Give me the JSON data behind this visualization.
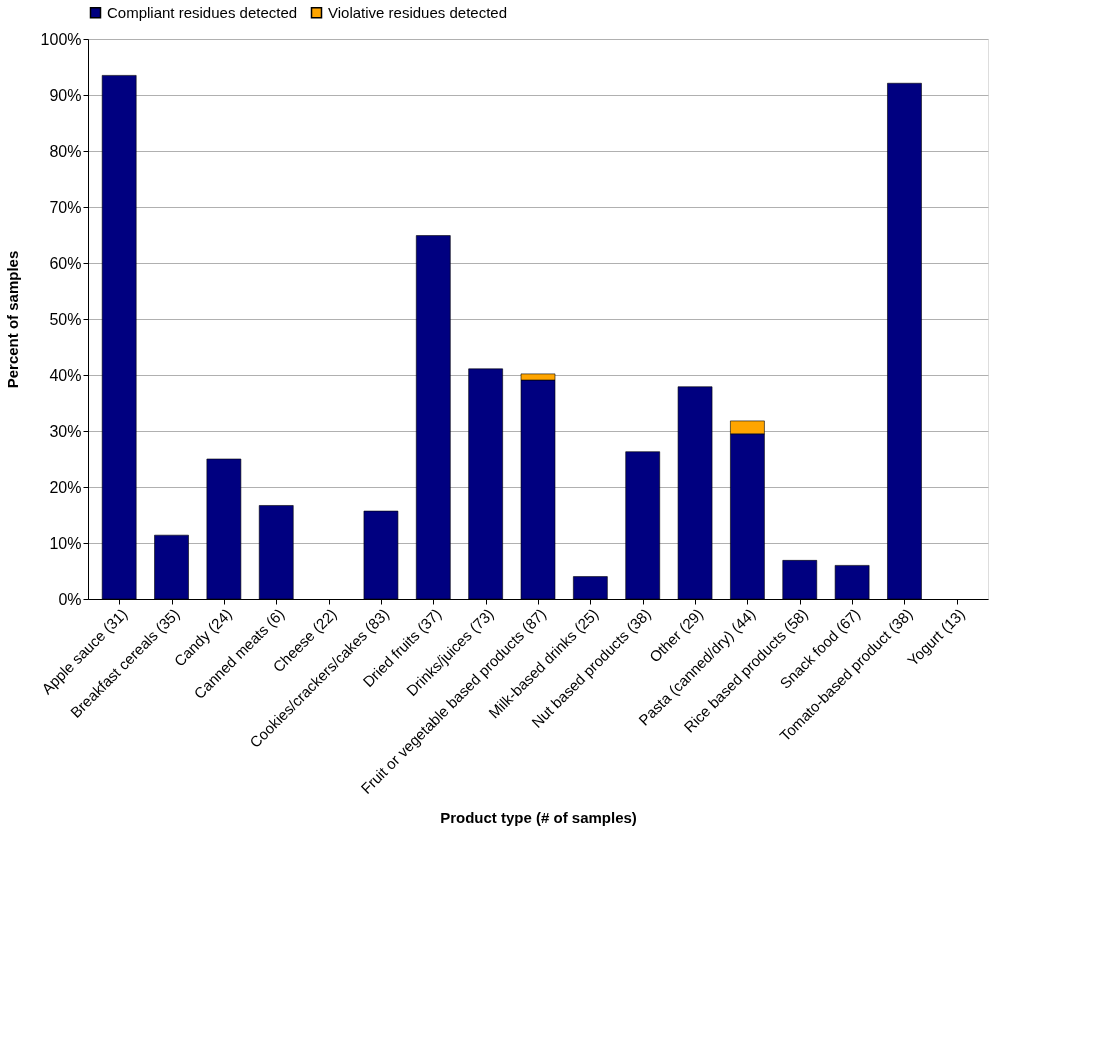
{
  "chart_data": {
    "type": "bar",
    "stacked": true,
    "xlabel": "Product type (# of samples)",
    "ylabel": "Percent of samples",
    "categories": [
      "Apple sauce (31)",
      "Breakfast cereals (35)",
      "Candy (24)",
      "Canned meats (6)",
      "Cheese (22)",
      "Cookies/crackers/cakes (83)",
      "Dried fruits (37)",
      "Drinks/juices (73)",
      "Fruit or vegetable based products (87)",
      "Milk-based drinks (25)",
      "Nut based products (38)",
      "Other (29)",
      "Pasta (canned/dry) (44)",
      "Rice based products (58)",
      "Snack food (67)",
      "Tomato-based product (38)",
      "Yogurt (13)"
    ],
    "series": [
      {
        "name": "Compliant residues detected",
        "color": "#000080",
        "values": [
          93.5,
          11.4,
          25.0,
          16.7,
          0,
          15.7,
          64.9,
          41.1,
          39.1,
          4.0,
          26.3,
          37.9,
          29.5,
          6.9,
          6.0,
          92.1,
          0
        ]
      },
      {
        "name": "Violative residues detected",
        "color": "#ffa500",
        "values": [
          null,
          null,
          null,
          null,
          null,
          null,
          null,
          null,
          1.1,
          null,
          null,
          null,
          2.3,
          null,
          null,
          null,
          null
        ]
      }
    ],
    "ylim": [
      0,
      100
    ],
    "yticks": [
      {
        "value": 0,
        "label": "0%"
      },
      {
        "value": 10,
        "label": "10%"
      },
      {
        "value": 20,
        "label": "20%"
      },
      {
        "value": 30,
        "label": "30%"
      },
      {
        "value": 40,
        "label": "40%"
      },
      {
        "value": 50,
        "label": "50%"
      },
      {
        "value": 60,
        "label": "60%"
      },
      {
        "value": 70,
        "label": "70%"
      },
      {
        "value": 80,
        "label": "80%"
      },
      {
        "value": 90,
        "label": "90%"
      },
      {
        "value": 100,
        "label": "100%"
      }
    ],
    "grid": "y",
    "legend": "top"
  }
}
